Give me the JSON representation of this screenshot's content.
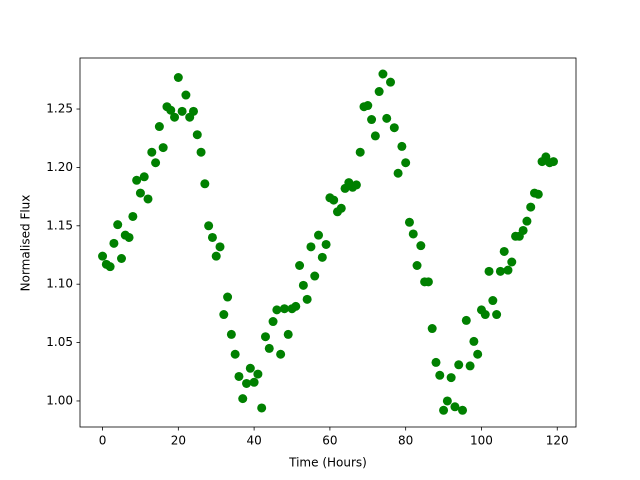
{
  "chart_data": {
    "type": "scatter",
    "xlabel": "Time (Hours)",
    "ylabel": "Normalised Flux",
    "series": [
      {
        "color": "#008000",
        "x": [
          0,
          1,
          2,
          3,
          4,
          5,
          6,
          7,
          8,
          9,
          10,
          11,
          12,
          13,
          14,
          15,
          16,
          17,
          18,
          19,
          20,
          21,
          22,
          23,
          24,
          25,
          26,
          27,
          28,
          29,
          30,
          31,
          32,
          33,
          34,
          35,
          36,
          37,
          38,
          39,
          40,
          41,
          42,
          43,
          44,
          45,
          46,
          47,
          48,
          49,
          50,
          51,
          52,
          53,
          54,
          55,
          56,
          57,
          58,
          59,
          60,
          61,
          62,
          63,
          64,
          65,
          66,
          67,
          68,
          69,
          70,
          71,
          72,
          73,
          74,
          75,
          76,
          77,
          78,
          79,
          80,
          81,
          82,
          83,
          84,
          85,
          86,
          87,
          88,
          89,
          90,
          91,
          92,
          93,
          94,
          95,
          96,
          97,
          98,
          99,
          100,
          101,
          102,
          103,
          104,
          105,
          106,
          107,
          108,
          109,
          110,
          111,
          112,
          113,
          114,
          115,
          116,
          117,
          118,
          119
        ],
        "values": [
          1.124,
          1.117,
          1.115,
          1.135,
          1.151,
          1.122,
          1.142,
          1.14,
          1.158,
          1.189,
          1.178,
          1.192,
          1.173,
          1.213,
          1.204,
          1.235,
          1.217,
          1.252,
          1.249,
          1.243,
          1.277,
          1.248,
          1.262,
          1.243,
          1.248,
          1.228,
          1.213,
          1.186,
          1.15,
          1.14,
          1.124,
          1.132,
          1.074,
          1.089,
          1.057,
          1.04,
          1.021,
          1.002,
          1.015,
          1.028,
          1.016,
          1.023,
          0.994,
          1.055,
          1.045,
          1.068,
          1.078,
          1.04,
          1.079,
          1.057,
          1.079,
          1.081,
          1.116,
          1.099,
          1.087,
          1.132,
          1.107,
          1.142,
          1.123,
          1.134,
          1.174,
          1.172,
          1.162,
          1.165,
          1.182,
          1.187,
          1.183,
          1.185,
          1.213,
          1.252,
          1.253,
          1.241,
          1.227,
          1.265,
          1.28,
          1.242,
          1.273,
          1.234,
          1.195,
          1.218,
          1.204,
          1.153,
          1.143,
          1.116,
          1.133,
          1.102,
          1.102,
          1.062,
          1.033,
          1.022,
          0.992,
          1.0,
          1.02,
          0.995,
          1.031,
          0.992,
          1.069,
          1.03,
          1.051,
          1.04,
          1.078,
          1.074,
          1.111,
          1.086,
          1.074,
          1.111,
          1.128,
          1.112,
          1.119,
          1.141,
          1.141,
          1.146,
          1.154,
          1.166,
          1.178,
          1.177,
          1.205,
          1.209,
          1.204,
          1.205
        ]
      }
    ],
    "xlim": [
      -5.95,
      124.95
    ],
    "xticks": [
      0,
      20,
      40,
      60,
      80,
      100,
      120
    ],
    "ylim": [
      0.9777,
      1.2937
    ],
    "yticks": [
      {
        "value": 1.0,
        "label": "1.00"
      },
      1.05,
      {
        "value": 1.1,
        "label": "1.10"
      },
      1.15,
      {
        "value": 1.2,
        "label": "1.20"
      },
      1.25
    ]
  }
}
